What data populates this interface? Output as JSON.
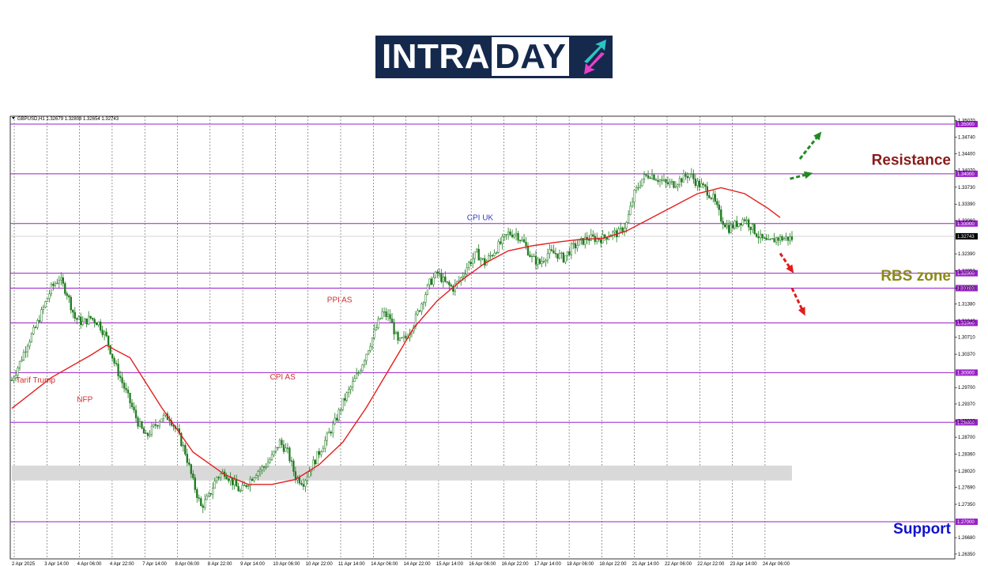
{
  "logo": {
    "part1": "INTRA",
    "part2": "DAY",
    "icon": "up-down-arrows-icon",
    "colors": {
      "bg": "#15294d",
      "teal": "#2ec4c4",
      "magenta": "#e83fc9"
    }
  },
  "chart_data": {
    "type": "candlestick",
    "title": "GBPUSD,H1  1.32679 1.32808 1.32654 1.32743",
    "ylim": [
      1.2635,
      1.357
    ],
    "grid": true,
    "y_ticks": [
      "1.35070",
      "1.34740",
      "1.34400",
      "1.34070",
      "1.33730",
      "1.33390",
      "1.33060",
      "1.32390",
      "1.32050",
      "1.31700",
      "1.31380",
      "1.31040",
      "1.30710",
      "1.30370",
      "1.29700",
      "1.29370",
      "1.29030",
      "1.28700",
      "1.28360",
      "1.28020",
      "1.27690",
      "1.27350",
      "1.26680",
      "1.26350"
    ],
    "x_ticks": [
      "2 Apr 2025",
      "3 Apr 14:00",
      "4 Apr 06:00",
      "4 Apr 22:00",
      "7 Apr 14:00",
      "8 Apr 06:00",
      "8 Apr 22:00",
      "9 Apr 14:00",
      "10 Apr 06:00",
      "10 Apr 22:00",
      "11 Apr 14:00",
      "14 Apr 06:00",
      "14 Apr 22:00",
      "15 Apr 14:00",
      "16 Apr 06:00",
      "16 Apr 22:00",
      "17 Apr 14:00",
      "18 Apr 06:00",
      "18 Apr 22:00",
      "21 Apr 14:00",
      "22 Apr 06:00",
      "22 Apr 22:00",
      "23 Apr 14:00",
      "24 Apr 06:00"
    ],
    "levels": [
      {
        "value": 1.35,
        "label": "1.35000"
      },
      {
        "value": 1.34,
        "label": "1.34000"
      },
      {
        "value": 1.33,
        "label": "1.33000"
      },
      {
        "value": 1.32,
        "label": "1.32000"
      },
      {
        "value": 1.317,
        "label": "1.31700"
      },
      {
        "value": 1.31,
        "label": "1.31000"
      },
      {
        "value": 1.3,
        "label": "1.30000"
      },
      {
        "value": 1.29,
        "label": "1.29000"
      },
      {
        "value": 1.27,
        "label": "1.27000"
      }
    ],
    "current_price": {
      "value": 1.32743,
      "label": "1.32743"
    },
    "gray_zone": [
      1.2783,
      1.2813
    ],
    "close_path": [
      [
        0,
        1.2985
      ],
      [
        4,
        1.302
      ],
      [
        8,
        1.306
      ],
      [
        12,
        1.309
      ],
      [
        16,
        1.313
      ],
      [
        20,
        1.317
      ],
      [
        24,
        1.319
      ],
      [
        28,
        1.316
      ],
      [
        32,
        1.311
      ],
      [
        36,
        1.31
      ],
      [
        40,
        1.311
      ],
      [
        44,
        1.31
      ],
      [
        48,
        1.307
      ],
      [
        52,
        1.302
      ],
      [
        56,
        1.298
      ],
      [
        60,
        1.294
      ],
      [
        64,
        1.29
      ],
      [
        68,
        1.287
      ],
      [
        72,
        1.289
      ],
      [
        76,
        1.291
      ],
      [
        80,
        1.291
      ],
      [
        84,
        1.288
      ],
      [
        88,
        1.284
      ],
      [
        92,
        1.278
      ],
      [
        96,
        1.273
      ],
      [
        100,
        1.275
      ],
      [
        104,
        1.279
      ],
      [
        108,
        1.28
      ],
      [
        112,
        1.278
      ],
      [
        116,
        1.276
      ],
      [
        120,
        1.278
      ],
      [
        124,
        1.28
      ],
      [
        128,
        1.281
      ],
      [
        132,
        1.283
      ],
      [
        136,
        1.286
      ],
      [
        140,
        1.284
      ],
      [
        144,
        1.279
      ],
      [
        148,
        1.278
      ],
      [
        152,
        1.281
      ],
      [
        156,
        1.284
      ],
      [
        160,
        1.287
      ],
      [
        164,
        1.29
      ],
      [
        168,
        1.294
      ],
      [
        172,
        1.297
      ],
      [
        176,
        1.3
      ],
      [
        180,
        1.304
      ],
      [
        184,
        1.308
      ],
      [
        188,
        1.312
      ],
      [
        192,
        1.311
      ],
      [
        196,
        1.306
      ],
      [
        200,
        1.307
      ],
      [
        204,
        1.31
      ],
      [
        208,
        1.314
      ],
      [
        212,
        1.318
      ],
      [
        216,
        1.32
      ],
      [
        220,
        1.318
      ],
      [
        224,
        1.317
      ],
      [
        228,
        1.319
      ],
      [
        232,
        1.322
      ],
      [
        236,
        1.324
      ],
      [
        240,
        1.322
      ],
      [
        244,
        1.324
      ],
      [
        248,
        1.326
      ],
      [
        252,
        1.328
      ],
      [
        256,
        1.328
      ],
      [
        260,
        1.326
      ],
      [
        264,
        1.323
      ],
      [
        268,
        1.322
      ],
      [
        272,
        1.324
      ],
      [
        276,
        1.324
      ],
      [
        280,
        1.323
      ],
      [
        284,
        1.325
      ],
      [
        288,
        1.326
      ],
      [
        292,
        1.327
      ],
      [
        296,
        1.327
      ],
      [
        300,
        1.327
      ],
      [
        304,
        1.328
      ],
      [
        308,
        1.328
      ],
      [
        312,
        1.33
      ],
      [
        316,
        1.336
      ],
      [
        320,
        1.339
      ],
      [
        324,
        1.34
      ],
      [
        328,
        1.339
      ],
      [
        332,
        1.338
      ],
      [
        336,
        1.338
      ],
      [
        340,
        1.339
      ],
      [
        344,
        1.34
      ],
      [
        348,
        1.338
      ],
      [
        352,
        1.337
      ],
      [
        356,
        1.335
      ],
      [
        360,
        1.331
      ],
      [
        364,
        1.329
      ],
      [
        368,
        1.33
      ],
      [
        372,
        1.331
      ],
      [
        376,
        1.329
      ],
      [
        380,
        1.327
      ],
      [
        384,
        1.326
      ],
      [
        388,
        1.327
      ],
      [
        392,
        1.327
      ],
      [
        396,
        1.327
      ]
    ],
    "ma_path": [
      [
        0,
        1.2928
      ],
      [
        20,
        1.299
      ],
      [
        40,
        1.3035
      ],
      [
        48,
        1.3055
      ],
      [
        60,
        1.303
      ],
      [
        76,
        1.293
      ],
      [
        92,
        1.284
      ],
      [
        108,
        1.2795
      ],
      [
        120,
        1.2775
      ],
      [
        132,
        1.2775
      ],
      [
        144,
        1.2785
      ],
      [
        156,
        1.2815
      ],
      [
        168,
        1.286
      ],
      [
        180,
        1.293
      ],
      [
        192,
        1.301
      ],
      [
        204,
        1.309
      ],
      [
        216,
        1.3145
      ],
      [
        228,
        1.3185
      ],
      [
        240,
        1.322
      ],
      [
        252,
        1.3245
      ],
      [
        264,
        1.3255
      ],
      [
        276,
        1.3262
      ],
      [
        288,
        1.3268
      ],
      [
        300,
        1.327
      ],
      [
        312,
        1.3285
      ],
      [
        324,
        1.331
      ],
      [
        336,
        1.3335
      ],
      [
        348,
        1.336
      ],
      [
        360,
        1.3372
      ],
      [
        372,
        1.336
      ],
      [
        384,
        1.333
      ],
      [
        390,
        1.3312
      ]
    ],
    "annotations": [
      {
        "text": "Tarif Trump",
        "color": "#d42d2d",
        "x": 2,
        "y": 1.298
      },
      {
        "text": "NFP",
        "color": "#d42d2d",
        "x": 33,
        "y": 1.2941
      },
      {
        "text": "CPI AS",
        "color": "#d42d2d",
        "x": 131,
        "y": 1.2986
      },
      {
        "text": "PPI AS",
        "color": "#d42d2d",
        "x": 160,
        "y": 1.3141
      },
      {
        "text": "CPI UK",
        "color": "#3c3cc8",
        "x": 231,
        "y": 1.3307
      }
    ],
    "zone_labels": [
      {
        "text": "Resistance",
        "color": "#8b1a1a",
        "y": 1.3418
      },
      {
        "text": "RBS zone",
        "color": "#8a8a1a",
        "y": 1.3185
      },
      {
        "text": "Support",
        "color": "#1111cc",
        "y": 1.2676
      }
    ],
    "arrows": [
      {
        "color": "#1f8a1f",
        "from": [
          395,
          1.339
        ],
        "to": [
          405,
          1.34
        ]
      },
      {
        "color": "#1f8a1f",
        "from": [
          400,
          1.343
        ],
        "to": [
          410,
          1.348
        ]
      },
      {
        "color": "#e01b1b",
        "from": [
          390,
          1.324
        ],
        "to": [
          396,
          1.3205
        ]
      },
      {
        "color": "#e01b1b",
        "from": [
          396,
          1.317
        ],
        "to": [
          402,
          1.312
        ]
      }
    ],
    "colors": {
      "level": "#9a20c8",
      "ma": "#e41e1e",
      "candle": "#1e7a1e",
      "zone": "#d9d9d9"
    }
  }
}
